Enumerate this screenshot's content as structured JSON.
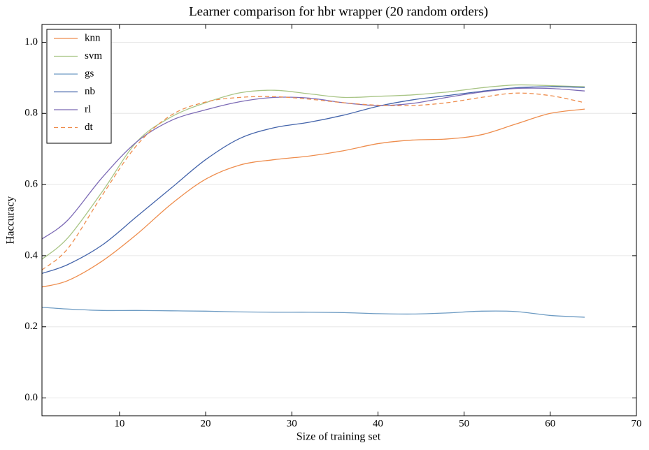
{
  "chart_data": {
    "type": "line",
    "title": "Learner comparison for hbr wrapper (20 random orders)",
    "x_label": "Size of training set",
    "y_label": "Haccuracy",
    "x": [
      1,
      4,
      8,
      12,
      16,
      20,
      24,
      28,
      32,
      36,
      40,
      44,
      48,
      52,
      56,
      60,
      64
    ],
    "series": [
      {
        "name": "knn",
        "color": "#ee8d4d",
        "linestyle": "solid",
        "values": [
          0.312,
          0.33,
          0.385,
          0.46,
          0.545,
          0.615,
          0.655,
          0.67,
          0.68,
          0.695,
          0.715,
          0.725,
          0.728,
          0.74,
          0.77,
          0.8,
          0.812
        ]
      },
      {
        "name": "svm",
        "color": "#a9c586",
        "linestyle": "solid",
        "values": [
          0.39,
          0.45,
          0.58,
          0.72,
          0.79,
          0.83,
          0.858,
          0.865,
          0.855,
          0.845,
          0.848,
          0.852,
          0.86,
          0.872,
          0.88,
          0.878,
          0.875
        ]
      },
      {
        "name": "gs",
        "color": "#6d9bc3",
        "linestyle": "solid",
        "values": [
          0.255,
          0.25,
          0.246,
          0.246,
          0.245,
          0.244,
          0.242,
          0.241,
          0.241,
          0.24,
          0.237,
          0.236,
          0.239,
          0.244,
          0.243,
          0.232,
          0.227
        ]
      },
      {
        "name": "nb",
        "color": "#4565ab",
        "linestyle": "solid",
        "values": [
          0.35,
          0.375,
          0.43,
          0.51,
          0.59,
          0.67,
          0.73,
          0.76,
          0.775,
          0.795,
          0.82,
          0.838,
          0.85,
          0.862,
          0.872,
          0.875,
          0.873
        ]
      },
      {
        "name": "rl",
        "color": "#7c6ab5",
        "linestyle": "solid",
        "values": [
          0.447,
          0.5,
          0.62,
          0.72,
          0.78,
          0.81,
          0.833,
          0.845,
          0.843,
          0.83,
          0.822,
          0.828,
          0.845,
          0.86,
          0.87,
          0.87,
          0.863
        ]
      },
      {
        "name": "dt",
        "color": "#ee8d4d",
        "linestyle": "dashed",
        "values": [
          0.36,
          0.42,
          0.57,
          0.71,
          0.795,
          0.832,
          0.845,
          0.847,
          0.84,
          0.83,
          0.823,
          0.822,
          0.83,
          0.845,
          0.857,
          0.85,
          0.83
        ]
      }
    ],
    "xlim": [
      1,
      70
    ],
    "xticks": [
      10,
      20,
      30,
      40,
      50,
      60,
      70
    ],
    "ylim": [
      -0.05,
      1.05
    ],
    "yticks": [
      {
        "value": 0,
        "label": "0.0"
      },
      0.2,
      0.4,
      0.6,
      0.8,
      {
        "value": 1,
        "label": "1.0"
      }
    ],
    "grid": true,
    "legend": "upper left"
  }
}
